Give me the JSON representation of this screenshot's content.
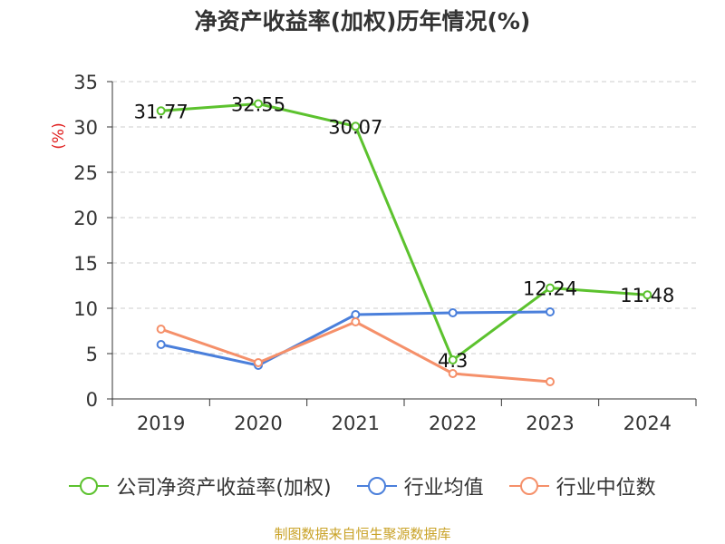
{
  "chart_data": {
    "type": "line",
    "title": "净资产收益率(加权)历年情况(%)",
    "ylabel": "(%)",
    "xlabel": "",
    "ylim": [
      0,
      35
    ],
    "yticks": [
      0,
      5,
      10,
      15,
      20,
      25,
      30,
      35
    ],
    "categories": [
      "2019",
      "2020",
      "2021",
      "2022",
      "2023",
      "2024"
    ],
    "grid": "horizontal-dashed",
    "legend_position": "bottom-center",
    "series": [
      {
        "name": "公司净资产收益率(加权)",
        "color": "#5cc22e",
        "values": [
          31.77,
          32.55,
          30.07,
          4.3,
          12.24,
          11.48
        ],
        "labels": [
          "31.77",
          "32.55",
          "30.07",
          "4.3",
          "12.24",
          "11.48"
        ]
      },
      {
        "name": "行业均值",
        "color": "#4a7fdb",
        "values": [
          6.0,
          3.7,
          9.3,
          9.5,
          9.6,
          null
        ]
      },
      {
        "name": "行业中位数",
        "color": "#f5906a",
        "values": [
          7.7,
          4.0,
          8.5,
          2.8,
          1.9,
          null
        ]
      }
    ],
    "source": "制图数据来自恒生聚源数据库"
  }
}
